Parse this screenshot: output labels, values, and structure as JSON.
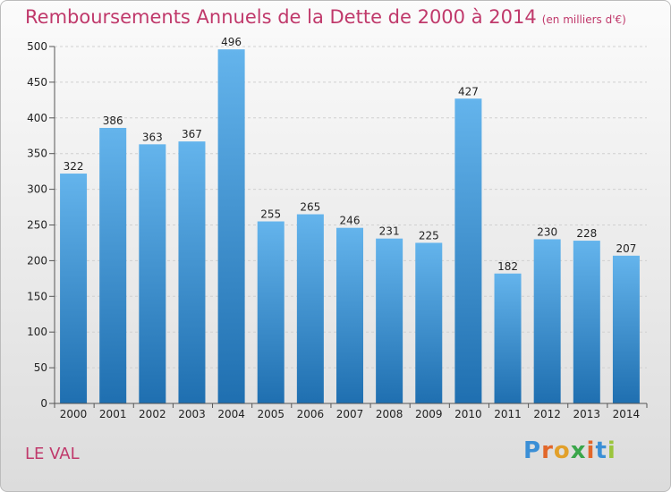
{
  "title": "Remboursements Annuels de la Dette de 2000 à 2014",
  "unit": "(en milliers d'€)",
  "commune": "LE VAL",
  "logo": {
    "letters": [
      "P",
      "r",
      "o",
      "x",
      "i",
      "t",
      "i"
    ],
    "colors": [
      "#3b8fd6",
      "#e2672a",
      "#e2a02a",
      "#3aa64a",
      "#e2672a",
      "#3b8fd6",
      "#9bc53d"
    ]
  },
  "colors": {
    "bar_top": "#64b4ec",
    "bar_bottom": "#1f6fb0",
    "title": "#c0396b"
  },
  "chart_data": {
    "type": "bar",
    "categories": [
      "2000",
      "2001",
      "2002",
      "2003",
      "2004",
      "2005",
      "2006",
      "2007",
      "2008",
      "2009",
      "2010",
      "2011",
      "2012",
      "2013",
      "2014"
    ],
    "values": [
      322,
      386,
      363,
      367,
      496,
      255,
      265,
      246,
      231,
      225,
      427,
      182,
      230,
      228,
      207
    ],
    "value_labels": [
      "322",
      "386",
      "363",
      "367",
      "496",
      "255",
      "265",
      "246",
      "231",
      "225",
      "427",
      "182",
      "230",
      "228",
      "207"
    ],
    "yticks": [
      "0",
      "50",
      "100",
      "150",
      "200",
      "250",
      "300",
      "350",
      "400",
      "450",
      "500"
    ],
    "ylim": [
      0,
      500
    ],
    "grid": true
  }
}
